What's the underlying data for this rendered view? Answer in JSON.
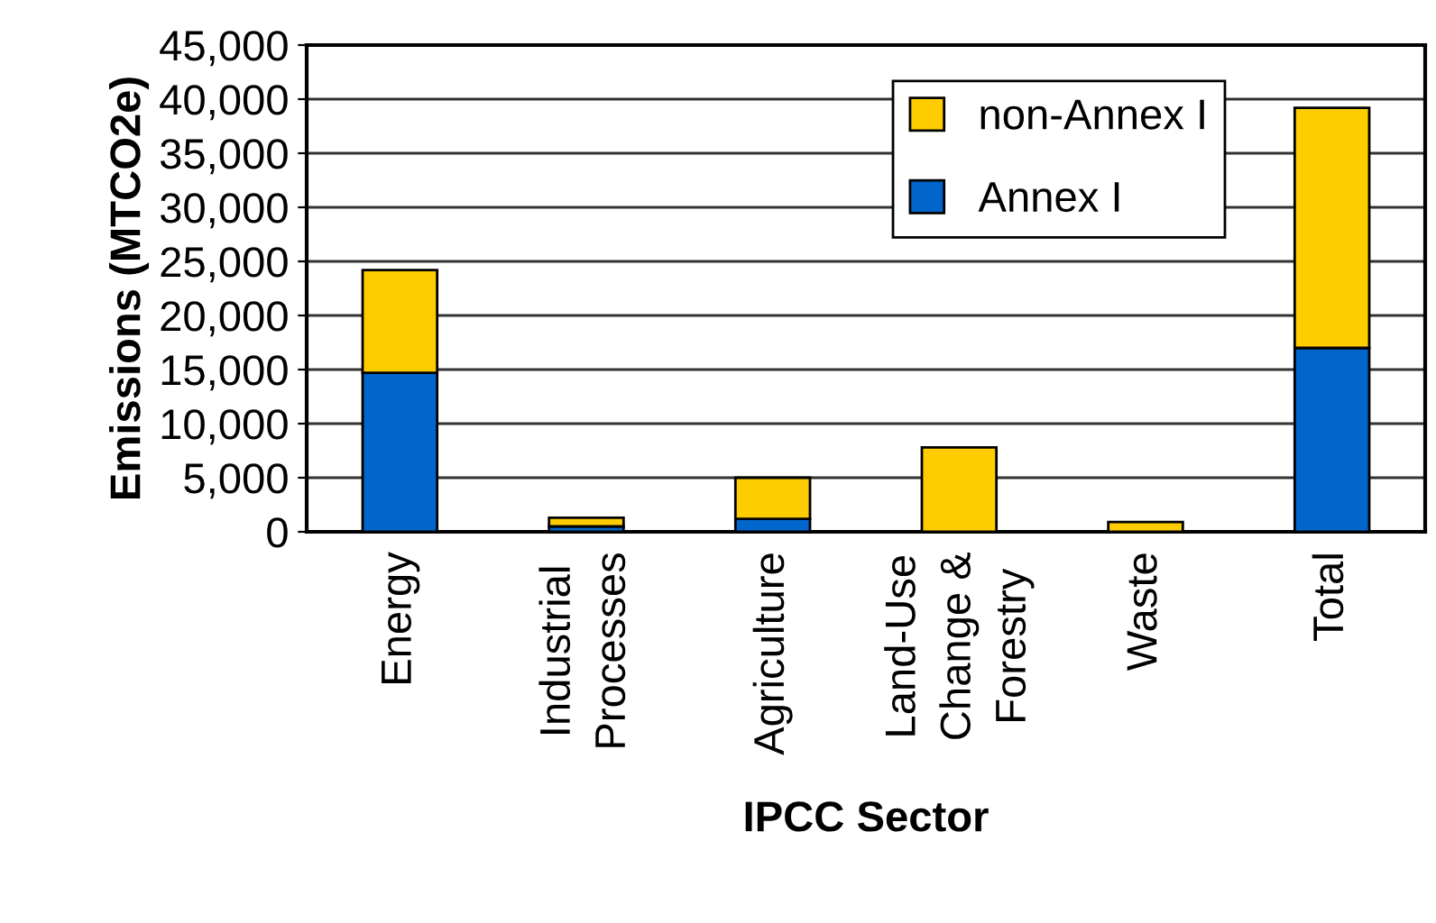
{
  "chart_data": {
    "type": "bar",
    "stacked": true,
    "xlabel": "IPCC Sector",
    "ylabel": "Emissions (MTCO2e)",
    "categories": [
      "Energy",
      "Industrial\nProcesses",
      "Agriculture",
      "Land-Use\nChange &\nForestry",
      "Waste",
      "Total"
    ],
    "series": [
      {
        "name": "Annex I",
        "color": "#0066cc",
        "values": [
          14700,
          500,
          1200,
          0,
          null,
          17000
        ]
      },
      {
        "name": "non-Annex I",
        "color": "#ffcc00",
        "values": [
          9500,
          800,
          3800,
          7800,
          900,
          22200
        ]
      }
    ],
    "ylim": [
      0,
      45000
    ],
    "yticks": [
      {
        "value": 0,
        "label": "0"
      },
      {
        "value": 5000,
        "label": "5,000"
      },
      {
        "value": 10000,
        "label": "10,000"
      },
      {
        "value": 15000,
        "label": "15,000"
      },
      {
        "value": 20000,
        "label": "20,000"
      },
      {
        "value": 25000,
        "label": "25,000"
      },
      {
        "value": 30000,
        "label": "30,000"
      },
      {
        "value": 35000,
        "label": "35,000"
      },
      {
        "value": 40000,
        "label": "40,000"
      },
      {
        "value": 45000,
        "label": "45,000"
      }
    ],
    "grid": "y",
    "legend": "top right"
  }
}
